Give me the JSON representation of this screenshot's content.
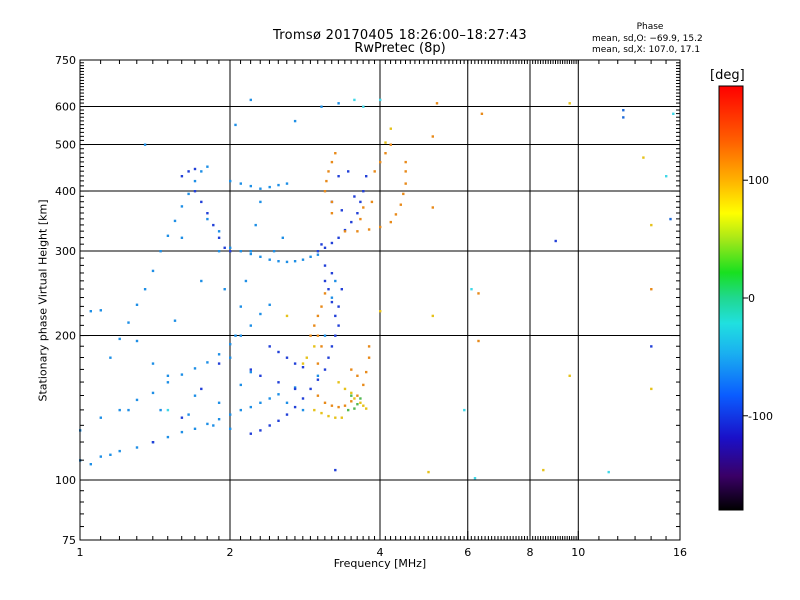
{
  "header": {
    "title_line1": "Tromsø 20170405 18:26:00–18:27:43",
    "title_line2": "RwPretec (8p)"
  },
  "phase_stats": {
    "title": "Phase",
    "o_mode": "mean, sd,O: −69.9, 15.2",
    "x_mode": "mean, sd,X: 107.0, 17.1"
  },
  "chart_data": {
    "type": "scatter",
    "title": "Tromsø 20170405 18:26:00–18:27:43",
    "subtitle": "RwPretec (8p)",
    "xlabel": "Frequency [MHz]",
    "ylabel": "Stationary phase Virtual Height [km]",
    "x_scale": "log",
    "y_scale": "log",
    "xlim": [
      1,
      16
    ],
    "ylim": [
      75,
      750
    ],
    "x_ticks": [
      1,
      2,
      4,
      6,
      8,
      10,
      16
    ],
    "x_tick_labels": [
      "1",
      "2",
      "4",
      "6",
      "8",
      "10",
      "16"
    ],
    "y_ticks": [
      75,
      100,
      200,
      300,
      400,
      500,
      600,
      750
    ],
    "y_tick_labels": [
      "75",
      "100",
      "200",
      "300",
      "400",
      "500",
      "600",
      "750"
    ],
    "grid": true,
    "colorbar": {
      "label": "[deg]",
      "range": [
        -180,
        180
      ],
      "ticks": [
        100,
        0,
        -100
      ],
      "tick_labels": [
        "100",
        "0",
        "-100"
      ]
    },
    "series": [
      {
        "color": "#1e8fe6",
        "points": [
          [
            1.0,
            110
          ],
          [
            1.05,
            108
          ],
          [
            1.1,
            112
          ],
          [
            1.15,
            113
          ],
          [
            1.2,
            115
          ],
          [
            1.3,
            117
          ],
          [
            1.4,
            120
          ],
          [
            1.5,
            123
          ],
          [
            1.6,
            126
          ],
          [
            1.7,
            128
          ],
          [
            1.8,
            131
          ],
          [
            1.9,
            134
          ],
          [
            2.0,
            137
          ],
          [
            2.1,
            140
          ],
          [
            2.2,
            142
          ],
          [
            2.3,
            145
          ],
          [
            2.4,
            148
          ],
          [
            2.5,
            151
          ],
          [
            2.7,
            156
          ],
          [
            1.0,
            127
          ],
          [
            1.1,
            135
          ],
          [
            1.2,
            140
          ],
          [
            1.3,
            147
          ],
          [
            1.4,
            152
          ],
          [
            1.5,
            160
          ],
          [
            1.6,
            166
          ],
          [
            1.7,
            171
          ],
          [
            1.8,
            176
          ],
          [
            1.9,
            183
          ],
          [
            2.0,
            192
          ],
          [
            2.1,
            200
          ],
          [
            2.2,
            210
          ],
          [
            2.3,
            222
          ],
          [
            2.4,
            232
          ],
          [
            1.15,
            180
          ],
          [
            1.2,
            197
          ],
          [
            1.25,
            213
          ],
          [
            1.3,
            232
          ],
          [
            1.35,
            250
          ],
          [
            1.4,
            273
          ],
          [
            1.45,
            300
          ],
          [
            1.5,
            323
          ],
          [
            1.55,
            347
          ],
          [
            1.6,
            372
          ],
          [
            1.65,
            395
          ],
          [
            1.7,
            420
          ],
          [
            1.75,
            440
          ],
          [
            1.8,
            450
          ],
          [
            1.9,
            300
          ],
          [
            2.0,
            305
          ],
          [
            2.1,
            300
          ],
          [
            2.2,
            296
          ],
          [
            2.3,
            292
          ],
          [
            2.4,
            288
          ],
          [
            2.5,
            286
          ],
          [
            2.6,
            285
          ],
          [
            2.7,
            286
          ],
          [
            2.8,
            288
          ],
          [
            2.9,
            292
          ],
          [
            3.0,
            295
          ],
          [
            2.0,
            180
          ],
          [
            2.05,
            200
          ],
          [
            2.1,
            230
          ],
          [
            2.15,
            260
          ],
          [
            2.2,
            300
          ],
          [
            2.25,
            340
          ],
          [
            2.3,
            380
          ],
          [
            2.0,
            420
          ],
          [
            2.1,
            415
          ],
          [
            2.2,
            410
          ],
          [
            2.3,
            405
          ],
          [
            2.4,
            408
          ],
          [
            2.5,
            412
          ],
          [
            2.6,
            415
          ],
          [
            1.05,
            225
          ],
          [
            1.1,
            226
          ],
          [
            1.3,
            195
          ],
          [
            1.4,
            175
          ],
          [
            1.5,
            165
          ],
          [
            1.7,
            150
          ],
          [
            1.9,
            145
          ],
          [
            2.1,
            158
          ],
          [
            2.2,
            168
          ],
          [
            2.6,
            145
          ],
          [
            2.8,
            140
          ],
          [
            3.0,
            165
          ],
          [
            3.1,
            200
          ],
          [
            3.2,
            240
          ],
          [
            3.25,
            260
          ],
          [
            1.35,
            500
          ],
          [
            1.6,
            320
          ],
          [
            1.8,
            350
          ],
          [
            1.9,
            330
          ],
          [
            2.05,
            550
          ],
          [
            2.2,
            620
          ],
          [
            2.7,
            560
          ],
          [
            3.05,
            600
          ],
          [
            3.3,
            610
          ],
          [
            1.25,
            140
          ],
          [
            1.45,
            140
          ],
          [
            1.65,
            137
          ],
          [
            1.85,
            130
          ],
          [
            2.0,
            128
          ],
          [
            1.55,
            215
          ],
          [
            1.75,
            260
          ],
          [
            1.95,
            250
          ],
          [
            2.45,
            300
          ],
          [
            2.55,
            320
          ]
        ]
      },
      {
        "color": "#2240d8",
        "points": [
          [
            1.7,
            400
          ],
          [
            1.75,
            380
          ],
          [
            1.8,
            360
          ],
          [
            1.85,
            340
          ],
          [
            1.9,
            320
          ],
          [
            1.95,
            305
          ],
          [
            2.0,
            300
          ],
          [
            2.2,
            125
          ],
          [
            2.3,
            127
          ],
          [
            2.4,
            130
          ],
          [
            2.5,
            133
          ],
          [
            2.6,
            137
          ],
          [
            2.7,
            142
          ],
          [
            2.8,
            148
          ],
          [
            2.9,
            155
          ],
          [
            3.0,
            162
          ],
          [
            3.1,
            170
          ],
          [
            3.15,
            180
          ],
          [
            3.2,
            190
          ],
          [
            3.25,
            200
          ],
          [
            3.3,
            210
          ],
          [
            3.25,
            220
          ],
          [
            3.2,
            235
          ],
          [
            3.15,
            250
          ],
          [
            3.1,
            260
          ],
          [
            3.0,
            300
          ],
          [
            3.1,
            305
          ],
          [
            3.2,
            312
          ],
          [
            3.3,
            320
          ],
          [
            3.4,
            332
          ],
          [
            3.5,
            345
          ],
          [
            3.6,
            360
          ],
          [
            3.65,
            380
          ],
          [
            3.7,
            400
          ],
          [
            3.75,
            430
          ],
          [
            2.4,
            190
          ],
          [
            2.5,
            185
          ],
          [
            2.6,
            180
          ],
          [
            2.7,
            175
          ],
          [
            2.8,
            172
          ],
          [
            1.6,
            430
          ],
          [
            1.65,
            440
          ],
          [
            1.7,
            445
          ],
          [
            2.2,
            170
          ],
          [
            2.3,
            165
          ],
          [
            2.5,
            160
          ],
          [
            2.7,
            155
          ],
          [
            3.35,
            250
          ],
          [
            3.05,
            310
          ],
          [
            3.3,
            430
          ],
          [
            3.45,
            440
          ],
          [
            3.55,
            390
          ],
          [
            3.2,
            380
          ],
          [
            3.35,
            365
          ],
          [
            1.4,
            120
          ],
          [
            1.6,
            135
          ],
          [
            1.75,
            155
          ],
          [
            1.9,
            175
          ],
          [
            3.25,
            105
          ],
          [
            9.0,
            315
          ],
          [
            14.0,
            190
          ],
          [
            3.1,
            280
          ],
          [
            3.2,
            270
          ],
          [
            3.3,
            230
          ]
        ]
      },
      {
        "color": "#e88a1a",
        "points": [
          [
            3.0,
            175
          ],
          [
            3.05,
            190
          ],
          [
            3.0,
            200
          ],
          [
            2.95,
            210
          ],
          [
            3.0,
            220
          ],
          [
            3.05,
            230
          ],
          [
            3.1,
            245
          ],
          [
            3.0,
            150
          ],
          [
            3.1,
            145
          ],
          [
            3.2,
            143
          ],
          [
            3.3,
            142
          ],
          [
            3.4,
            143
          ],
          [
            3.5,
            146
          ],
          [
            3.6,
            150
          ],
          [
            3.7,
            158
          ],
          [
            3.75,
            168
          ],
          [
            3.8,
            180
          ],
          [
            3.8,
            190
          ],
          [
            3.1,
            400
          ],
          [
            3.12,
            420
          ],
          [
            3.15,
            440
          ],
          [
            3.2,
            460
          ],
          [
            3.25,
            480
          ],
          [
            3.2,
            380
          ],
          [
            3.2,
            360
          ],
          [
            3.4,
            330
          ],
          [
            3.6,
            330
          ],
          [
            3.8,
            333
          ],
          [
            4.0,
            337
          ],
          [
            4.2,
            345
          ],
          [
            4.3,
            358
          ],
          [
            4.4,
            375
          ],
          [
            4.45,
            395
          ],
          [
            4.5,
            415
          ],
          [
            4.5,
            440
          ],
          [
            4.5,
            460
          ],
          [
            3.9,
            440
          ],
          [
            4.0,
            460
          ],
          [
            4.1,
            480
          ],
          [
            4.2,
            500
          ],
          [
            3.85,
            380
          ],
          [
            3.7,
            370
          ],
          [
            3.65,
            350
          ],
          [
            3.5,
            170
          ],
          [
            3.6,
            165
          ],
          [
            2.9,
            200
          ],
          [
            5.1,
            370
          ],
          [
            5.1,
            520
          ],
          [
            6.3,
            195
          ],
          [
            6.3,
            245
          ],
          [
            14.0,
            250
          ],
          [
            5.2,
            610
          ],
          [
            6.4,
            580
          ]
        ]
      },
      {
        "color": "#e6c21a",
        "points": [
          [
            2.8,
            175
          ],
          [
            2.85,
            180
          ],
          [
            2.95,
            190
          ],
          [
            3.3,
            160
          ],
          [
            3.4,
            155
          ],
          [
            3.5,
            152
          ],
          [
            3.55,
            148
          ],
          [
            3.65,
            145
          ],
          [
            3.7,
            143
          ],
          [
            3.75,
            141
          ],
          [
            2.95,
            140
          ],
          [
            3.05,
            138
          ],
          [
            3.15,
            136
          ],
          [
            3.25,
            135
          ],
          [
            3.35,
            135
          ],
          [
            4.0,
            225
          ],
          [
            4.2,
            540
          ],
          [
            4.1,
            505
          ],
          [
            5.0,
            104
          ],
          [
            8.5,
            105
          ],
          [
            9.6,
            165
          ],
          [
            9.6,
            610
          ],
          [
            13.5,
            470
          ],
          [
            14.0,
            155
          ],
          [
            14.0,
            340
          ],
          [
            5.1,
            220
          ],
          [
            2.6,
            220
          ]
        ]
      },
      {
        "color": "#52b852",
        "points": [
          [
            3.45,
            140
          ],
          [
            3.55,
            141
          ],
          [
            3.6,
            144
          ],
          [
            3.5,
            150
          ],
          [
            3.65,
            148
          ]
        ]
      },
      {
        "color": "#40d8e8",
        "points": [
          [
            3.55,
            620
          ],
          [
            3.7,
            600
          ],
          [
            4.0,
            620
          ],
          [
            6.1,
            250
          ],
          [
            6.2,
            101
          ],
          [
            11.5,
            104
          ],
          [
            15.0,
            430
          ],
          [
            15.5,
            580
          ],
          [
            5.9,
            140
          ],
          [
            1.5,
            140
          ]
        ]
      },
      {
        "color": "#1e6ad8",
        "points": [
          [
            12.3,
            570
          ],
          [
            12.3,
            590
          ],
          [
            15.3,
            350
          ]
        ]
      }
    ]
  }
}
